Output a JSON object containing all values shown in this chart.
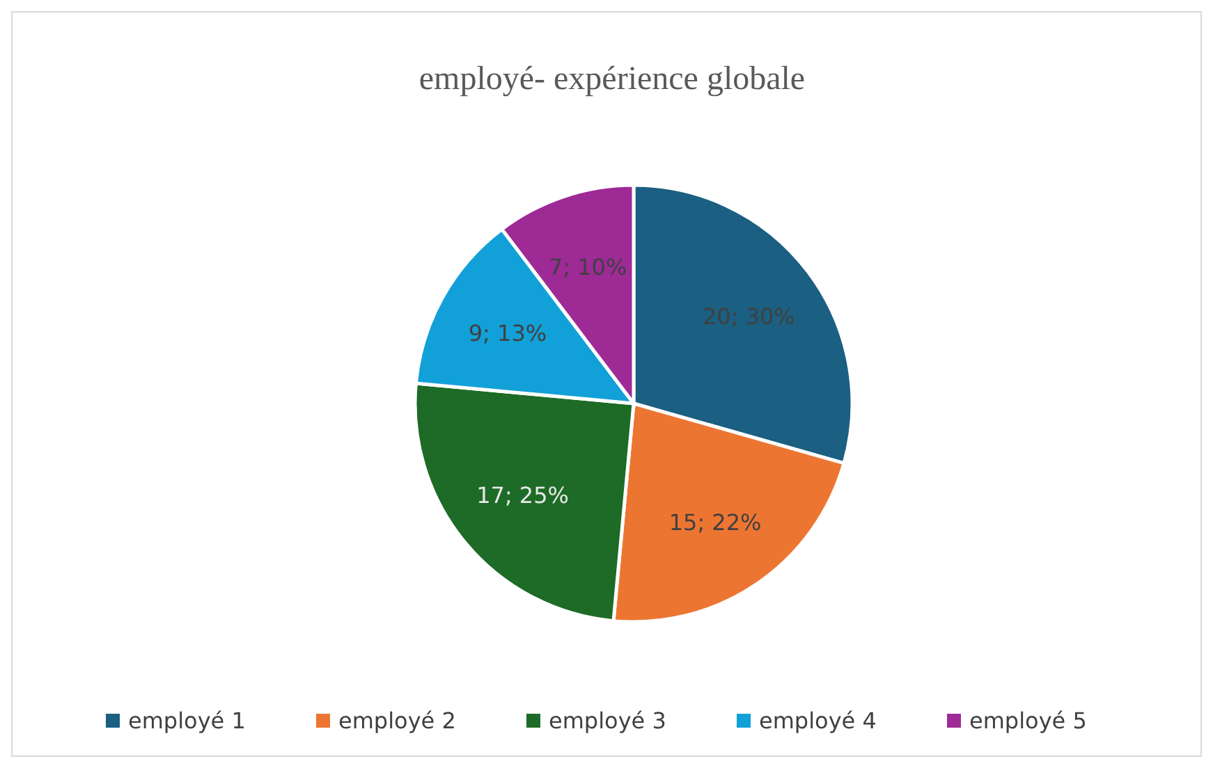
{
  "chart_data": {
    "type": "pie",
    "title": "employé- expérience globale",
    "categories": [
      "employé 1",
      "employé 2",
      "employé 3",
      "employé 4",
      "employé 5"
    ],
    "values": [
      20,
      15,
      17,
      9,
      7
    ],
    "colors": [
      "#1b5f82",
      "#ed7532",
      "#1d6b26",
      "#12a0d8",
      "#9e2a96"
    ],
    "value_labels": [
      "20; 30%",
      "15; 22%",
      "17; 25%",
      "9; 13%",
      "7; 10%"
    ],
    "legend": "bottom"
  }
}
